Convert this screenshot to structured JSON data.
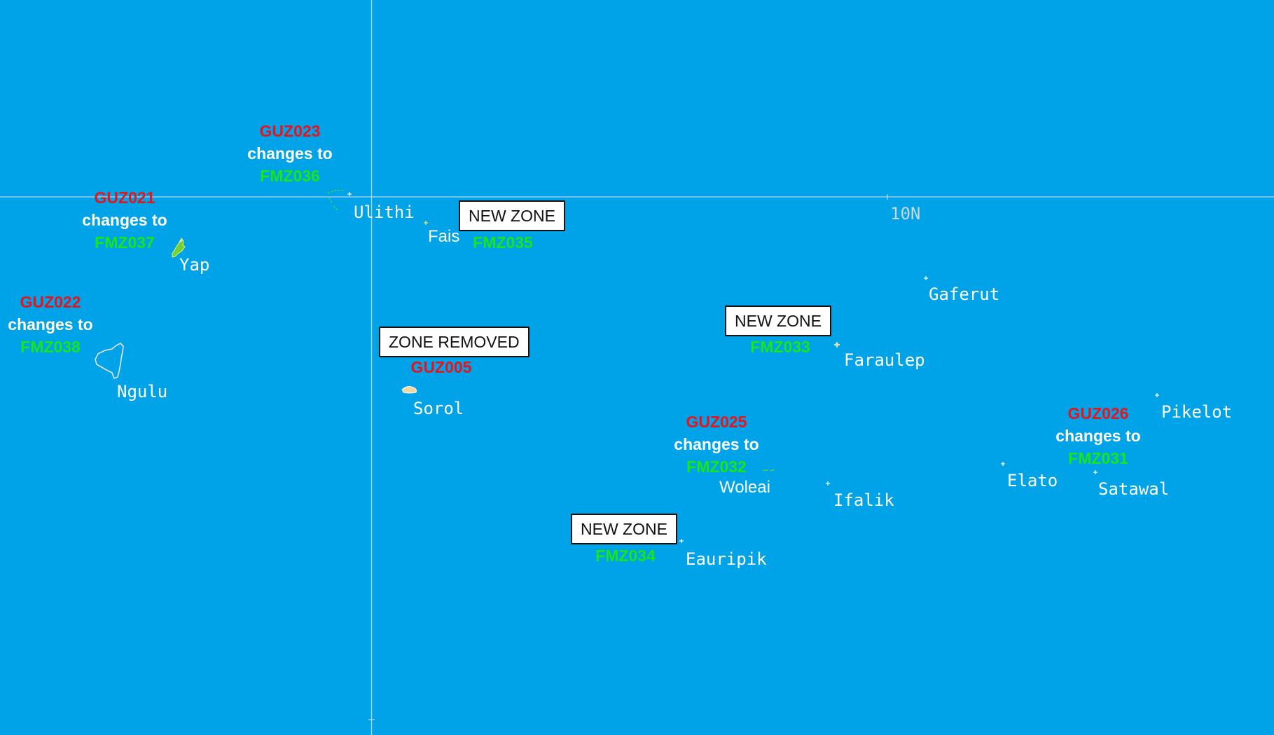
{
  "grid": {
    "latitude_label": "10N"
  },
  "places": [
    {
      "id": "ulithi",
      "name": "Ulithi"
    },
    {
      "id": "fais",
      "name": "Fais"
    },
    {
      "id": "yap",
      "name": "Yap"
    },
    {
      "id": "ngulu",
      "name": "Ngulu"
    },
    {
      "id": "sorol",
      "name": "Sorol"
    },
    {
      "id": "gaferut",
      "name": "Gaferut"
    },
    {
      "id": "faraulep",
      "name": "Faraulep"
    },
    {
      "id": "woleai",
      "name": "Woleai"
    },
    {
      "id": "ifalik",
      "name": "Ifalik"
    },
    {
      "id": "eauripik",
      "name": "Eauripik"
    },
    {
      "id": "elato",
      "name": "Elato"
    },
    {
      "id": "satawal",
      "name": "Satawal"
    },
    {
      "id": "pikelot",
      "name": "Pikelot"
    }
  ],
  "zone_changes": [
    {
      "old": "GUZ023",
      "text": "changes to",
      "new": "FMZ036"
    },
    {
      "old": "GUZ021",
      "text": "changes to",
      "new": "FMZ037"
    },
    {
      "old": "GUZ022",
      "text": "changes to",
      "new": "FMZ038"
    },
    {
      "old": "GUZ025",
      "text": "changes to",
      "new": "FMZ032"
    },
    {
      "old": "GUZ026",
      "text": "changes to",
      "new": "FMZ031"
    }
  ],
  "new_zones": [
    {
      "label": "NEW ZONE",
      "code": "FMZ035"
    },
    {
      "label": "NEW ZONE",
      "code": "FMZ033"
    },
    {
      "label": "NEW ZONE",
      "code": "FMZ034"
    }
  ],
  "removed_zone": {
    "label": "ZONE REMOVED",
    "code": "GUZ005"
  },
  "colors": {
    "ocean": "#00a2e8",
    "old_zone": "#e8141b",
    "new_zone": "#19e619",
    "label": "#ffffff",
    "gridline": "#b8d4ea"
  }
}
